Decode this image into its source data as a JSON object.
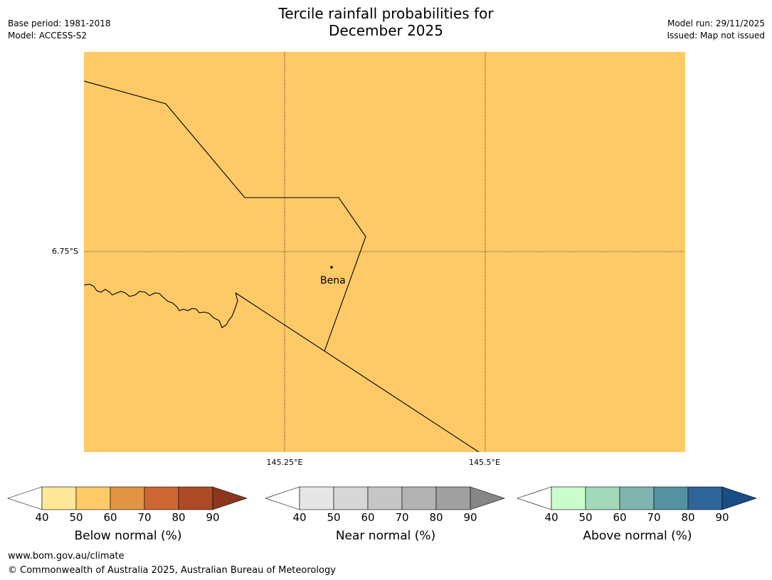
{
  "title_line1": "Tercile rainfall probabilities for",
  "title_line2": "December 2025",
  "meta_left": {
    "base_period": "Base period: 1981-2018",
    "model": "Model: ACCESS-S2"
  },
  "meta_right": {
    "model_run": "Model run: 29/11/2025",
    "issued": "Issued: Map not issued"
  },
  "map": {
    "fill_color": "#fdca67",
    "lat_label": "6.75°S",
    "lon_labels": [
      "145.25°E",
      "145.5°E"
    ],
    "place": "Bena"
  },
  "legends": [
    {
      "title": "Below normal (%)",
      "ticks": [
        "40",
        "50",
        "60",
        "70",
        "80",
        "90"
      ],
      "colors": [
        "#fee799",
        "#fdca67",
        "#e09444",
        "#cd6734",
        "#ad4b26"
      ],
      "arrow_color": "#8c3620"
    },
    {
      "title": "Near normal (%)",
      "ticks": [
        "40",
        "50",
        "60",
        "70",
        "80",
        "90"
      ],
      "colors": [
        "#e6e6e6",
        "#d7d7d7",
        "#c6c6c6",
        "#b3b3b3",
        "#a0a0a0"
      ],
      "arrow_color": "#868686"
    },
    {
      "title": "Above normal (%)",
      "ticks": [
        "40",
        "50",
        "60",
        "70",
        "80",
        "90"
      ],
      "colors": [
        "#cbfccb",
        "#a3d9bb",
        "#7fb5ae",
        "#5592a0",
        "#2e6497"
      ],
      "arrow_color": "#174e88"
    }
  ],
  "footer": {
    "url": "www.bom.gov.au/climate",
    "copyright": "© Commonwealth of Australia 2025, Australian Bureau of Meteorology"
  }
}
